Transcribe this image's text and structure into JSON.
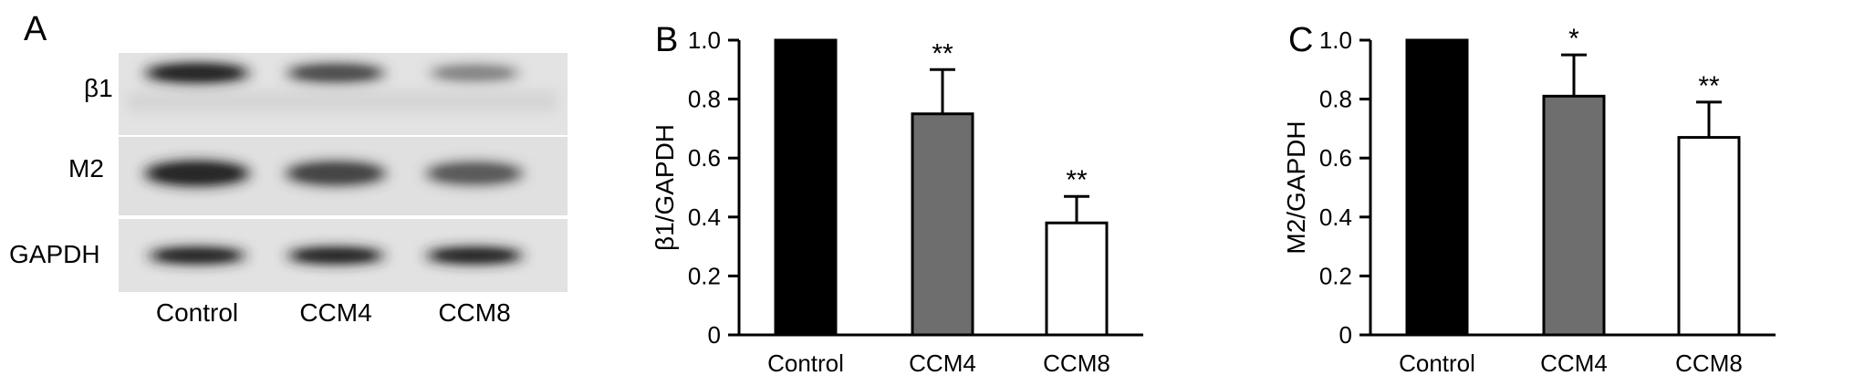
{
  "panel_a": {
    "letter": "A",
    "row_labels": [
      "β1",
      "M2",
      "GAPDH"
    ],
    "lane_labels": [
      "Control",
      "CCM4",
      "CCM8"
    ],
    "band_intensity": {
      "β1": [
        1.0,
        0.75,
        0.38
      ],
      "M2": [
        1.0,
        0.81,
        0.67
      ],
      "GAPDH": [
        1.0,
        1.0,
        1.0
      ]
    }
  },
  "colors": {
    "Control": "#000000",
    "CCM4": "#6e6e6e",
    "CCM8": "#ffffff"
  },
  "chart_data": [
    {
      "type": "bar",
      "panel": "B",
      "categories": [
        "Control",
        "CCM4",
        "CCM8"
      ],
      "values": [
        1.0,
        0.75,
        0.38
      ],
      "error": [
        0,
        0.15,
        0.09
      ],
      "significance": [
        "",
        "**",
        "**"
      ],
      "ylabel": "β1/GAPDH",
      "xlabel": "",
      "ylim": [
        0,
        1.0
      ],
      "yticks": [
        "0",
        "0.2",
        "0.4",
        "0.6",
        "0.8",
        "1.0"
      ],
      "ytick_values": [
        0,
        0.2,
        0.4,
        0.6,
        0.8,
        1.0
      ],
      "grid": false
    },
    {
      "type": "bar",
      "panel": "C",
      "categories": [
        "Control",
        "CCM4",
        "CCM8"
      ],
      "values": [
        1.0,
        0.81,
        0.67
      ],
      "error": [
        0,
        0.14,
        0.12
      ],
      "significance": [
        "",
        "*",
        "**"
      ],
      "ylabel": "M2/GAPDH",
      "xlabel": "",
      "ylim": [
        0,
        1.0
      ],
      "yticks": [
        "0",
        "0.2",
        "0.4",
        "0.6",
        "0.8",
        "1.0"
      ],
      "ytick_values": [
        0,
        0.2,
        0.4,
        0.6,
        0.8,
        1.0
      ],
      "grid": false
    }
  ]
}
